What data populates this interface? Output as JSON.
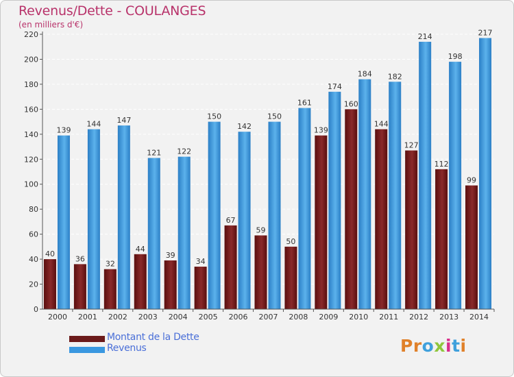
{
  "chart_data": {
    "type": "bar",
    "title": "Revenus/Dette - COULANGES",
    "subtitle": "(en milliers d'€)",
    "categories": [
      "2000",
      "2001",
      "2002",
      "2003",
      "2004",
      "2005",
      "2006",
      "2007",
      "2008",
      "2009",
      "2010",
      "2011",
      "2012",
      "2013",
      "2014"
    ],
    "series": [
      {
        "name": "Montant de la Dette",
        "color": "#6b1a1a",
        "values": [
          40,
          36,
          32,
          44,
          39,
          34,
          67,
          59,
          50,
          139,
          160,
          144,
          127,
          112,
          99
        ]
      },
      {
        "name": "Revenus",
        "color": "#3a98e0",
        "values": [
          139,
          144,
          147,
          121,
          122,
          150,
          142,
          150,
          161,
          174,
          184,
          182,
          214,
          198,
          217
        ]
      }
    ],
    "ylim": [
      0,
      220
    ],
    "yticks": [
      0,
      20,
      40,
      60,
      80,
      100,
      120,
      140,
      160,
      180,
      200,
      220
    ],
    "grid": true,
    "legend_position": "bottom-left"
  },
  "logo": {
    "text": "Proxiti",
    "letter_colors": [
      "#e0812a",
      "#e0812a",
      "#3fa0dc",
      "#8fc63c",
      "#d92e8a",
      "#3fa0dc",
      "#e0812a"
    ]
  }
}
